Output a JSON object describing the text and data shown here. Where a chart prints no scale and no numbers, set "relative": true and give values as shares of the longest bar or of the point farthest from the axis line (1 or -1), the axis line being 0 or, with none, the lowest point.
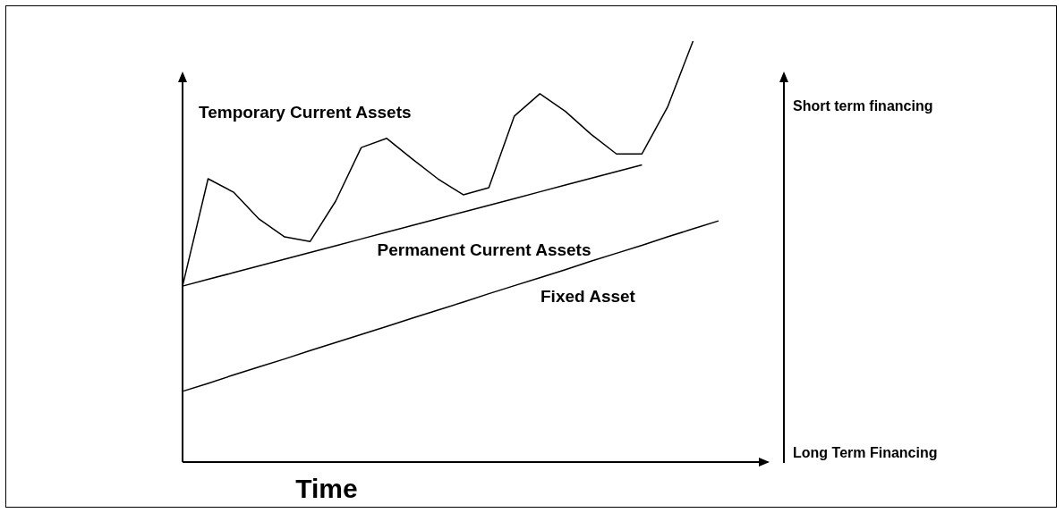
{
  "chart_data": {
    "type": "line",
    "relative": true,
    "xlabel": "Time",
    "tick_labels": false,
    "legend": false,
    "marker": "none",
    "line_style": "solid",
    "categories": [
      null,
      null,
      null,
      null,
      null,
      null,
      null,
      null,
      null,
      null,
      null,
      null,
      null,
      null,
      null,
      null,
      null,
      null,
      null,
      null,
      null,
      null,
      null,
      null
    ],
    "series": [
      {
        "name": "Temporary Current Assets",
        "color": "#000000",
        "values": [
          0.418,
          0.673,
          0.641,
          0.577,
          0.535,
          0.524,
          0.62,
          0.747,
          0.769,
          0.72,
          0.673,
          0.635,
          0.652,
          0.822,
          0.875,
          0.833,
          0.779,
          0.732,
          0.732,
          0.843,
          1.0,
          null,
          null,
          null
        ]
      },
      {
        "name": "Permanent Current Assets",
        "color": "#000000",
        "values": [
          0.418,
          0.434,
          0.45,
          0.466,
          0.482,
          0.498,
          0.514,
          0.53,
          0.546,
          0.562,
          0.578,
          0.594,
          0.61,
          0.626,
          0.642,
          0.658,
          0.674,
          0.69,
          0.706,
          null,
          null,
          null,
          null,
          null
        ]
      },
      {
        "name": "Fixed Asset",
        "color": "#000000",
        "values": [
          0.168,
          0.187,
          0.207,
          0.226,
          0.245,
          0.265,
          0.284,
          0.303,
          0.322,
          0.342,
          0.361,
          0.38,
          0.4,
          0.419,
          0.438,
          0.457,
          0.477,
          0.496,
          0.515,
          0.535,
          0.554,
          0.573,
          null,
          null
        ]
      }
    ],
    "annotations": [
      "Short term financing",
      "Long Term Financing"
    ]
  }
}
